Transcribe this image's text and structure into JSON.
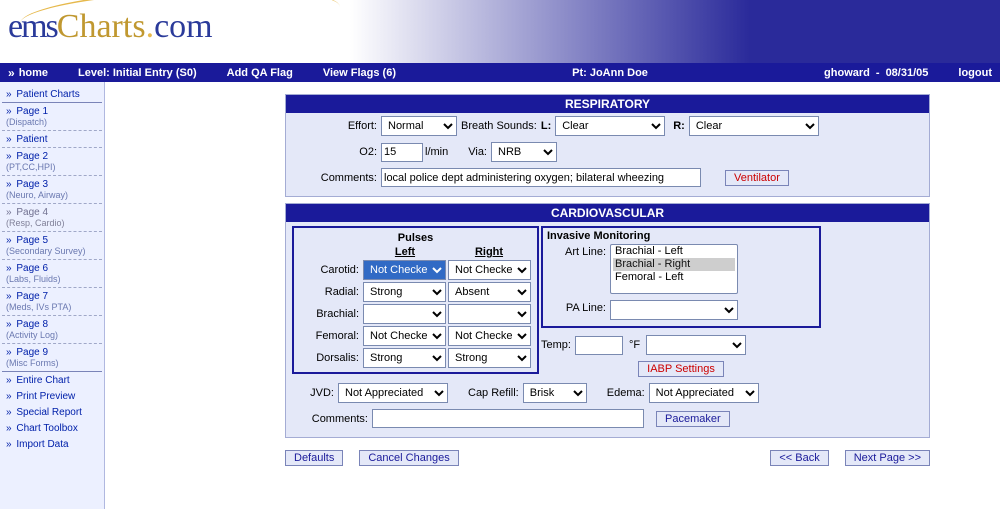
{
  "header": {
    "logo_ems": "ems",
    "logo_charts": "Charts",
    "logo_com": "com"
  },
  "nav": {
    "home": "home",
    "level": "Level: Initial Entry (S0)",
    "add_qa": "Add QA Flag",
    "view_flags": "View Flags (6)",
    "patient": "Pt: JoAnn Doe",
    "user": "ghoward",
    "date": "08/31/05",
    "logout": "logout"
  },
  "sidebar": {
    "items": [
      {
        "label": "Patient Charts",
        "sub": "",
        "solid": true
      },
      {
        "label": "Page 1",
        "sub": "(Dispatch)"
      },
      {
        "label": "Patient",
        "sub": ""
      },
      {
        "label": "Page 2",
        "sub": "(PT,CC,HPI)"
      },
      {
        "label": "Page 3",
        "sub": "(Neuro, Airway)"
      },
      {
        "label": "Page 4",
        "sub": "(Resp, Cardio)",
        "active": true
      },
      {
        "label": "Page 5",
        "sub": "(Secondary Survey)"
      },
      {
        "label": "Page 6",
        "sub": "(Labs, Fluids)"
      },
      {
        "label": "Page 7",
        "sub": "(Meds, IVs PTA)"
      },
      {
        "label": "Page 8",
        "sub": "(Activity Log)"
      },
      {
        "label": "Page 9",
        "sub": "(Misc Forms)",
        "solid": true
      },
      {
        "label": "Entire Chart",
        "sub": "",
        "nb": true
      },
      {
        "label": "Print Preview",
        "sub": "",
        "nb": true
      },
      {
        "label": "Special Report",
        "sub": "",
        "nb": true
      },
      {
        "label": "Chart Toolbox",
        "sub": "",
        "nb": true
      },
      {
        "label": "Import Data",
        "sub": "",
        "nb": true
      }
    ]
  },
  "respiratory": {
    "title": "RESPIRATORY",
    "effort_lbl": "Effort:",
    "effort_val": "Normal",
    "breath_sounds_lbl": "Breath Sounds:",
    "l_lbl": "L:",
    "l_val": "Clear",
    "r_lbl": "R:",
    "r_val": "Clear",
    "o2_lbl": "O2:",
    "o2_val": "15",
    "o2_unit": "l/min",
    "via_lbl": "Via:",
    "via_val": "NRB",
    "comments_lbl": "Comments:",
    "comments_val": "local police dept administering oxygen; bilateral wheezing",
    "vent_btn": "Ventilator"
  },
  "cardio": {
    "title": "CARDIOVASCULAR",
    "pulses": {
      "title": "Pulses",
      "left_h": "Left",
      "right_h": "Right",
      "rows": [
        {
          "lbl": "Carotid:",
          "left": "Not Checked",
          "right": "Not Checked",
          "left_hl": true
        },
        {
          "lbl": "Radial:",
          "left": "Strong",
          "right": "Absent"
        },
        {
          "lbl": "Brachial:",
          "left": "",
          "right": ""
        },
        {
          "lbl": "Femoral:",
          "left": "Not Checked",
          "right": "Not Checked"
        },
        {
          "lbl": "Dorsalis:",
          "left": "Strong",
          "right": "Strong"
        }
      ]
    },
    "invasive": {
      "title": "Invasive Monitoring",
      "art_lbl": "Art Line:",
      "art_opts": [
        "Brachial - Left",
        "Brachial - Right",
        "Femoral - Left"
      ],
      "art_sel": 1,
      "pa_lbl": "PA Line:",
      "pa_val": ""
    },
    "temp_lbl": "Temp:",
    "temp_val": "",
    "temp_unit": "°F",
    "temp_sel": "",
    "iabp_btn": "IABP Settings",
    "jvd_lbl": "JVD:",
    "jvd_val": "Not Appreciated",
    "cap_lbl": "Cap Refill:",
    "cap_val": "Brisk",
    "edema_lbl": "Edema:",
    "edema_val": "Not Appreciated",
    "comments_lbl": "Comments:",
    "comments_val": "",
    "pace_btn": "Pacemaker"
  },
  "buttons": {
    "defaults": "Defaults",
    "cancel": "Cancel Changes",
    "back": "<< Back",
    "next": "Next Page >>"
  }
}
